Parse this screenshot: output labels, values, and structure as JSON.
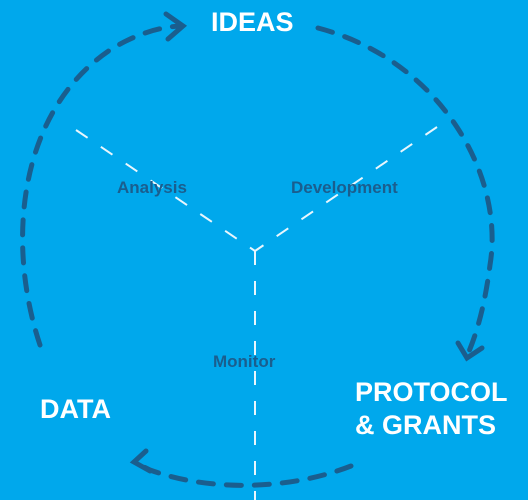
{
  "colors": {
    "background": "#00a8ec",
    "cycle_arrow": "#1a5e8e",
    "divider": "#e8f6fd",
    "node_text": "#ffffff",
    "step_text": "#1a5e8e"
  },
  "nodes": {
    "ideas": "IDEAS",
    "protocol_line1": "PROTOCOL",
    "protocol_line2": "& GRANTS",
    "data": "DATA"
  },
  "steps": {
    "analysis": "Analysis",
    "development": "Development",
    "monitor": "Monitor"
  },
  "icons": {
    "cycle": "dashed-cycle-arrow-icon",
    "divider": "dashed-divider-line"
  }
}
